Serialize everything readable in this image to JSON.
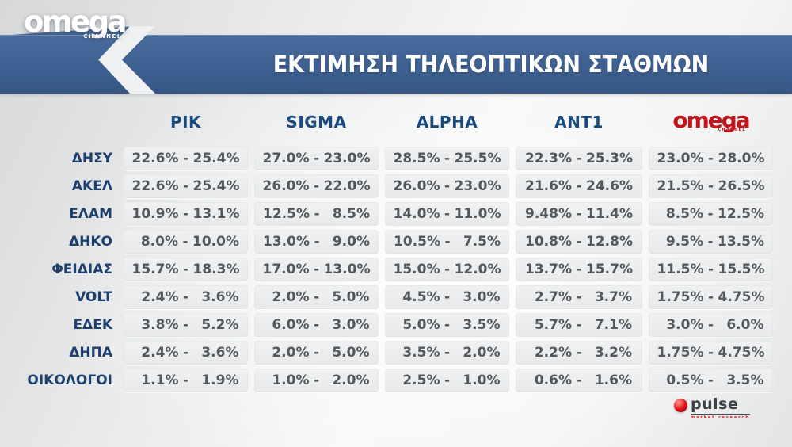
{
  "chart_data": {
    "type": "table",
    "title": "ΕΚΤΙΜΗΣΗ ΤΗΛΕΟΠΤΙΚΩΝ ΣΤΑΘΜΩΝ",
    "columns": [
      "ΡΙΚ",
      "SIGMA",
      "ALPHA",
      "ANT1",
      "OMEGA"
    ],
    "value_separator": "-",
    "unit": "%",
    "rows": [
      {
        "party": "ΔΗΣΥ",
        "ranges": [
          [
            "22.6%",
            "25.4%"
          ],
          [
            "27.0%",
            "23.0%"
          ],
          [
            "28.5%",
            "25.5%"
          ],
          [
            "22.3%",
            "25.3%"
          ],
          [
            "23.0%",
            "28.0%"
          ]
        ]
      },
      {
        "party": "ΑΚΕΛ",
        "ranges": [
          [
            "22.6%",
            "25.4%"
          ],
          [
            "26.0%",
            "22.0%"
          ],
          [
            "26.0%",
            "23.0%"
          ],
          [
            "21.6%",
            "24.6%"
          ],
          [
            "21.5%",
            "26.5%"
          ]
        ]
      },
      {
        "party": "ΕΛΑΜ",
        "ranges": [
          [
            "10.9%",
            "13.1%"
          ],
          [
            "12.5%",
            "8.5%"
          ],
          [
            "14.0%",
            "11.0%"
          ],
          [
            "9.48%",
            "11.4%"
          ],
          [
            "8.5%",
            "12.5%"
          ]
        ]
      },
      {
        "party": "ΔΗΚΟ",
        "ranges": [
          [
            "8.0%",
            "10.0%"
          ],
          [
            "13.0%",
            "9.0%"
          ],
          [
            "10.5%",
            "7.5%"
          ],
          [
            "10.8%",
            "12.8%"
          ],
          [
            "9.5%",
            "13.5%"
          ]
        ]
      },
      {
        "party": "ΦΕΙΔΙΑΣ",
        "ranges": [
          [
            "15.7%",
            "18.3%"
          ],
          [
            "17.0%",
            "13.0%"
          ],
          [
            "15.0%",
            "12.0%"
          ],
          [
            "13.7%",
            "15.7%"
          ],
          [
            "11.5%",
            "15.5%"
          ]
        ]
      },
      {
        "party": "VOLT",
        "ranges": [
          [
            "2.4%",
            "3.6%"
          ],
          [
            "2.0%",
            "5.0%"
          ],
          [
            "4.5%",
            "3.0%"
          ],
          [
            "2.7%",
            "3.7%"
          ],
          [
            "1.75%",
            "4.75%"
          ]
        ]
      },
      {
        "party": "ΕΔΕΚ",
        "ranges": [
          [
            "3.8%",
            "5.2%"
          ],
          [
            "6.0%",
            "3.0%"
          ],
          [
            "5.0%",
            "3.5%"
          ],
          [
            "5.7%",
            "7.1%"
          ],
          [
            "3.0%",
            "6.0%"
          ]
        ]
      },
      {
        "party": "ΔΗΠΑ",
        "ranges": [
          [
            "2.4%",
            "3.6%"
          ],
          [
            "2.0%",
            "5.0%"
          ],
          [
            "3.5%",
            "2.0%"
          ],
          [
            "2.2%",
            "3.2%"
          ],
          [
            "1.75%",
            "4.75%"
          ]
        ]
      },
      {
        "party": "ΟΙΚΟΛΟΓΟΙ",
        "ranges": [
          [
            "1.1%",
            "1.9%"
          ],
          [
            "1.0%",
            "2.0%"
          ],
          [
            "2.5%",
            "1.0%"
          ],
          [
            "0.6%",
            "1.6%"
          ],
          [
            "0.5%",
            "3.5%"
          ]
        ]
      }
    ]
  },
  "brand": {
    "omega_channel": {
      "word": "omega",
      "sub": "CHANNEL"
    },
    "omega_column": {
      "word": "omega",
      "sub": "CHANNEL"
    }
  },
  "footer": {
    "pulse_word": "pulse",
    "pulse_sub": "market research"
  },
  "colors": {
    "banner_blue": "#3d6090",
    "header_navy": "#17497f",
    "label_navy": "#1e406f",
    "cell_text": "#54585c",
    "omega_red": "#c3151d",
    "pulse_red": "#e0151d"
  }
}
